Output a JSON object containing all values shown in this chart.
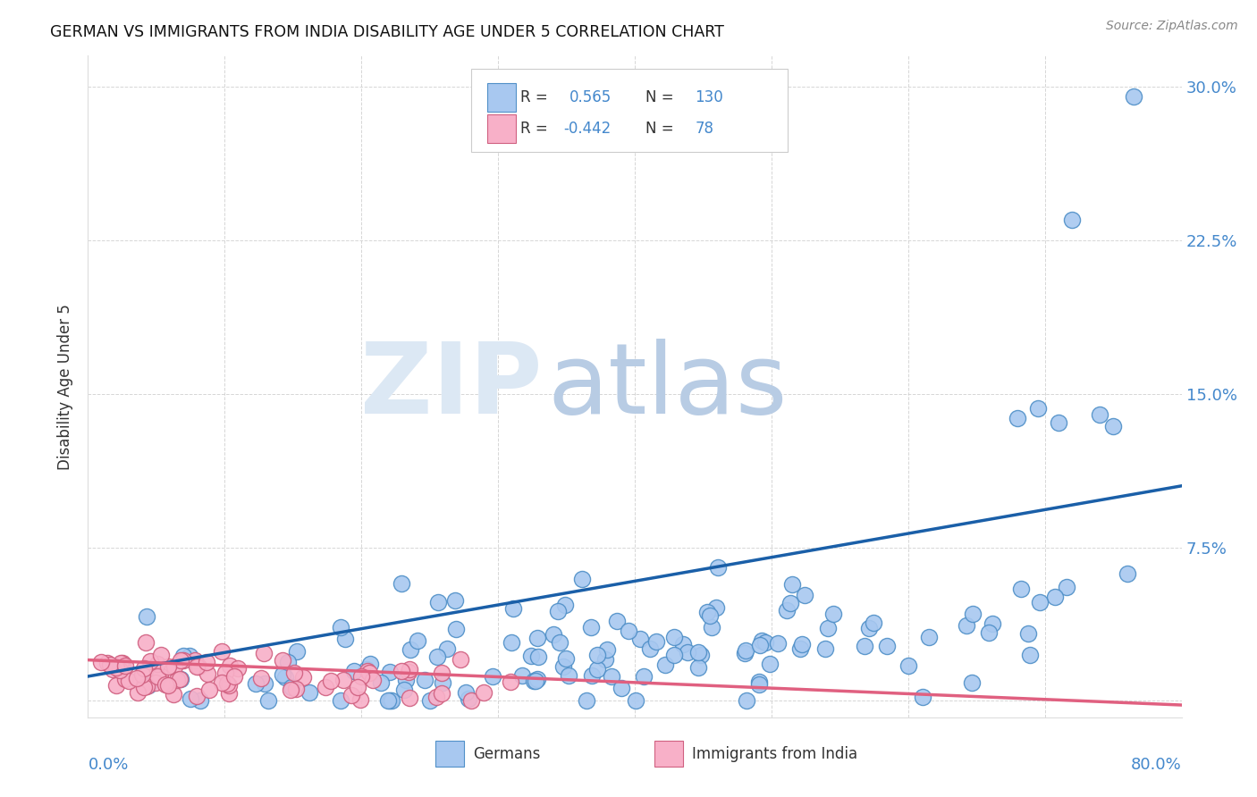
{
  "title": "GERMAN VS IMMIGRANTS FROM INDIA DISABILITY AGE UNDER 5 CORRELATION CHART",
  "source": "Source: ZipAtlas.com",
  "ylabel": "Disability Age Under 5",
  "ytick_labels": [
    "",
    "7.5%",
    "15.0%",
    "22.5%",
    "30.0%"
  ],
  "ytick_values": [
    0.0,
    0.075,
    0.15,
    0.225,
    0.3
  ],
  "xlim": [
    0.0,
    0.8
  ],
  "ylim": [
    -0.008,
    0.315
  ],
  "blue_scatter_color": "#a8c8f0",
  "blue_edge_color": "#5090c8",
  "pink_scatter_color": "#f8b0c8",
  "pink_edge_color": "#d06080",
  "blue_line_color": "#1a5fa8",
  "pink_line_color": "#e06080",
  "background_color": "#ffffff",
  "grid_color": "#cccccc",
  "title_color": "#111111",
  "axis_label_color": "#333333",
  "tick_color": "#4488cc",
  "watermark_zip_color": "#dce8f4",
  "watermark_atlas_color": "#b8cce4",
  "legend_box_color": "#cccccc",
  "legend_blue_r": "0.565",
  "legend_blue_n": "130",
  "legend_pink_r": "-0.442",
  "legend_pink_n": "78",
  "blue_line_y0": 0.012,
  "blue_line_y1": 0.105,
  "pink_line_y0": 0.02,
  "pink_line_y1": -0.002
}
